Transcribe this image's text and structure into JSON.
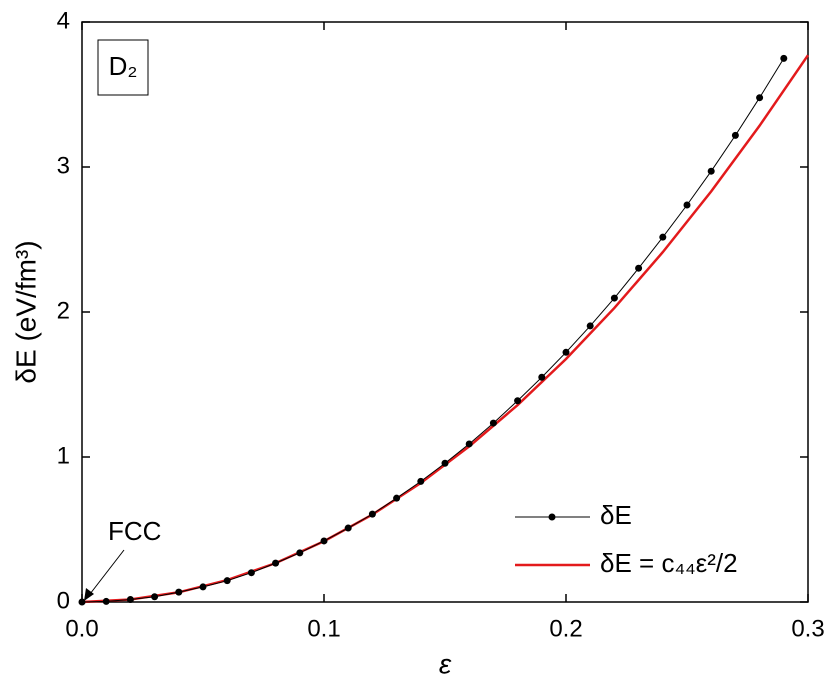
{
  "chart_data": {
    "type": "line",
    "xlabel": "ε",
    "ylabel": "δE (eV/fm³)",
    "annotations": [
      "D₂",
      "FCC"
    ],
    "xlim": [
      0,
      0.3
    ],
    "ylim": [
      0,
      4
    ],
    "xticks": [
      {
        "value": 0,
        "label": "0.0"
      },
      0.1,
      0.2,
      0.3
    ],
    "yticks": [
      0,
      1,
      2,
      3,
      4
    ],
    "legend": "lower right",
    "series": [
      {
        "name": "δE = c₄₄ε²/2",
        "color": "#e31a1c",
        "marker": false,
        "x": [
          0,
          0.02,
          0.04,
          0.06,
          0.08,
          0.1,
          0.12,
          0.14,
          0.16,
          0.18,
          0.2,
          0.22,
          0.24,
          0.26,
          0.28,
          0.3
        ],
        "values": [
          0,
          0.017,
          0.067,
          0.151,
          0.268,
          0.419,
          0.603,
          0.821,
          1.073,
          1.358,
          1.676,
          2.028,
          2.413,
          2.832,
          3.285,
          3.771
        ]
      },
      {
        "name": "δE",
        "color": "#000000",
        "marker": true,
        "x": [
          0,
          0.01,
          0.02,
          0.03,
          0.04,
          0.05,
          0.06,
          0.07,
          0.08,
          0.09,
          0.1,
          0.11,
          0.12,
          0.13,
          0.14,
          0.15,
          0.16,
          0.17,
          0.18,
          0.19,
          0.2,
          0.21,
          0.22,
          0.23,
          0.24,
          0.25,
          0.26,
          0.27,
          0.28,
          0.29
        ],
        "values": [
          0,
          0.004,
          0.017,
          0.036,
          0.068,
          0.104,
          0.147,
          0.202,
          0.268,
          0.339,
          0.421,
          0.51,
          0.606,
          0.716,
          0.832,
          0.957,
          1.09,
          1.234,
          1.388,
          1.55,
          1.722,
          1.904,
          2.096,
          2.302,
          2.516,
          2.738,
          2.971,
          3.218,
          3.478,
          3.749
        ]
      }
    ]
  }
}
